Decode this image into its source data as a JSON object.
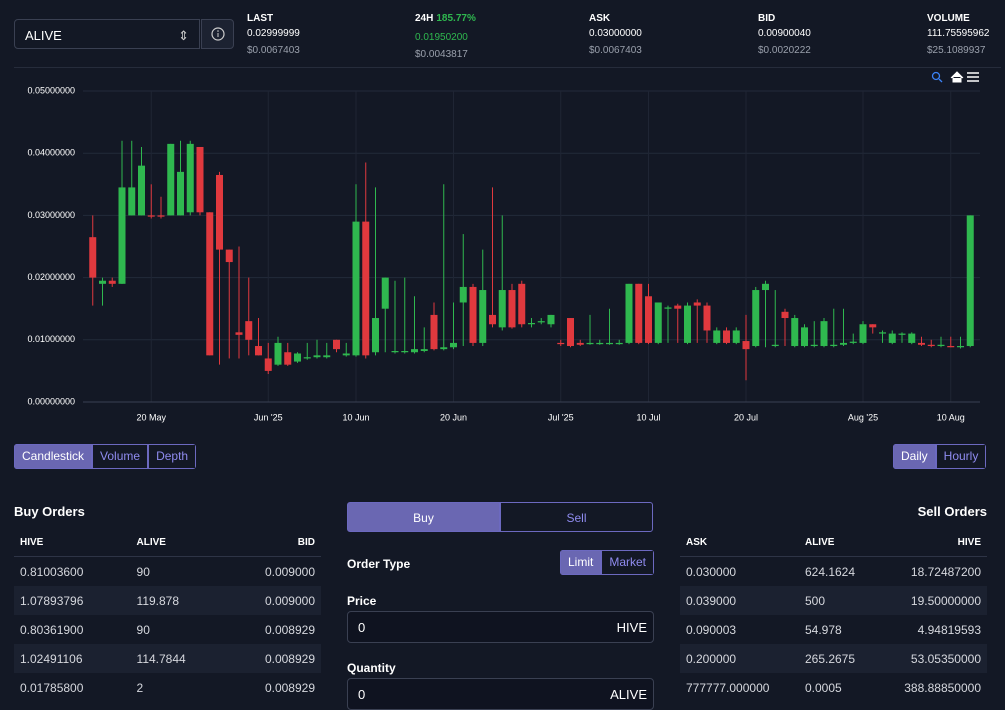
{
  "header": {
    "market": "ALIVE",
    "stats": [
      {
        "label": "LAST",
        "value": "0.02999999",
        "usd": "$0.0067403"
      },
      {
        "label": "24H",
        "change": "185.77%",
        "value": "0.01950200",
        "usd": "$0.0043817"
      },
      {
        "label": "ASK",
        "value": "0.03000000",
        "usd": "$0.0067403"
      },
      {
        "label": "BID",
        "value": "0.00900040",
        "usd": "$0.0020222"
      },
      {
        "label": "VOLUME",
        "value": "111.75595962",
        "usd": "$25.1089937"
      }
    ]
  },
  "chart_data": {
    "type": "candlestick",
    "up_color": "#2fb84f",
    "down_color": "#e0393e",
    "grid": true,
    "xlim": [
      "2025-05-13",
      "2025-08-13"
    ],
    "xticks": [
      {
        "value": "2025-05-20",
        "label": "20 May"
      },
      {
        "value": "2025-06-01",
        "label": "Jun '25"
      },
      {
        "value": "2025-06-10",
        "label": "10 Jun"
      },
      {
        "value": "2025-06-20",
        "label": "20 Jun"
      },
      {
        "value": "2025-07-01",
        "label": "Jul '25"
      },
      {
        "value": "2025-07-10",
        "label": "10 Jul"
      },
      {
        "value": "2025-07-20",
        "label": "20 Jul"
      },
      {
        "value": "2025-08-01",
        "label": "Aug '25"
      },
      {
        "value": "2025-08-10",
        "label": "10 Aug"
      }
    ],
    "ylim": [
      0,
      0.05
    ],
    "yticks": [
      {
        "value": 0,
        "label": "0.00000000"
      },
      {
        "value": 0.01,
        "label": "0.01000000"
      },
      {
        "value": 0.02,
        "label": "0.02000000"
      },
      {
        "value": 0.03,
        "label": "0.03000000"
      },
      {
        "value": 0.04,
        "label": "0.04000000"
      },
      {
        "value": 0.05,
        "label": "0.05000000"
      }
    ],
    "x": [
      "2025-05-14",
      "2025-05-15",
      "2025-05-16",
      "2025-05-17",
      "2025-05-18",
      "2025-05-19",
      "2025-05-20",
      "2025-05-21",
      "2025-05-22",
      "2025-05-23",
      "2025-05-24",
      "2025-05-25",
      "2025-05-26",
      "2025-05-27",
      "2025-05-28",
      "2025-05-29",
      "2025-05-30",
      "2025-05-31",
      "2025-06-01",
      "2025-06-02",
      "2025-06-03",
      "2025-06-04",
      "2025-06-05",
      "2025-06-06",
      "2025-06-07",
      "2025-06-08",
      "2025-06-09",
      "2025-06-10",
      "2025-06-11",
      "2025-06-12",
      "2025-06-13",
      "2025-06-14",
      "2025-06-15",
      "2025-06-16",
      "2025-06-17",
      "2025-06-18",
      "2025-06-19",
      "2025-06-20",
      "2025-06-21",
      "2025-06-22",
      "2025-06-23",
      "2025-06-24",
      "2025-06-25",
      "2025-06-26",
      "2025-06-27",
      "2025-06-28",
      "2025-06-29",
      "2025-06-30",
      "2025-07-01",
      "2025-07-02",
      "2025-07-03",
      "2025-07-04",
      "2025-07-05",
      "2025-07-06",
      "2025-07-07",
      "2025-07-08",
      "2025-07-09",
      "2025-07-10",
      "2025-07-11",
      "2025-07-12",
      "2025-07-13",
      "2025-07-14",
      "2025-07-15",
      "2025-07-16",
      "2025-07-17",
      "2025-07-18",
      "2025-07-19",
      "2025-07-20",
      "2025-07-21",
      "2025-07-22",
      "2025-07-23",
      "2025-07-24",
      "2025-07-25",
      "2025-07-26",
      "2025-07-27",
      "2025-07-28",
      "2025-07-29",
      "2025-07-30",
      "2025-07-31",
      "2025-08-01",
      "2025-08-02",
      "2025-08-03",
      "2025-08-04",
      "2025-08-05",
      "2025-08-06",
      "2025-08-07",
      "2025-08-08",
      "2025-08-09",
      "2025-08-10",
      "2025-08-11",
      "2025-08-12"
    ],
    "open": [
      0.0265,
      0.019,
      0.0195,
      0.019,
      0.03,
      0.03,
      0.03,
      0.03,
      0.03,
      0.03,
      0.0305,
      0.041,
      0.0305,
      0.0365,
      0.0245,
      0.0112,
      0.013,
      0.009,
      0.007,
      0.006,
      0.008,
      0.0065,
      0.007,
      0.0072,
      0.0072,
      0.01,
      0.0075,
      0.0075,
      0.029,
      0.008,
      0.015,
      0.008,
      0.008,
      0.008,
      0.0082,
      0.014,
      0.0085,
      0.0088,
      0.016,
      0.0185,
      0.0095,
      0.014,
      0.012,
      0.018,
      0.019,
      0.0125,
      0.0128,
      0.0125,
      0.0095,
      0.0135,
      0.0095,
      0.0093,
      0.0093,
      0.0093,
      0.0093,
      0.0095,
      0.019,
      0.017,
      0.0095,
      0.015,
      0.0155,
      0.0095,
      0.016,
      0.0155,
      0.0095,
      0.0115,
      0.0095,
      0.0098,
      0.009,
      0.018,
      0.009,
      0.0145,
      0.009,
      0.009,
      0.009,
      0.009,
      0.009,
      0.0092,
      0.0095,
      0.0095,
      0.0125,
      0.011,
      0.0095,
      0.0108,
      0.0095,
      0.0095,
      0.0092,
      0.009,
      0.009,
      0.0088,
      0.009
    ],
    "high": [
      0.03,
      0.02,
      0.02,
      0.042,
      0.042,
      0.041,
      0.035,
      0.033,
      0.0415,
      0.042,
      0.042,
      0.041,
      0.0305,
      0.037,
      0.0245,
      0.025,
      0.02,
      0.0135,
      0.0095,
      0.0105,
      0.0095,
      0.008,
      0.0095,
      0.01,
      0.0095,
      0.01,
      0.0095,
      0.035,
      0.0385,
      0.0345,
      0.02,
      0.0195,
      0.02,
      0.017,
      0.012,
      0.016,
      0.035,
      0.016,
      0.027,
      0.019,
      0.0245,
      0.0345,
      0.03,
      0.019,
      0.0195,
      0.0135,
      0.0135,
      0.014,
      0.01,
      0.0135,
      0.01,
      0.014,
      0.01,
      0.015,
      0.01,
      0.019,
      0.019,
      0.019,
      0.016,
      0.0155,
      0.0158,
      0.016,
      0.0165,
      0.016,
      0.012,
      0.012,
      0.012,
      0.014,
      0.0185,
      0.0195,
      0.018,
      0.015,
      0.014,
      0.0125,
      0.013,
      0.0135,
      0.015,
      0.015,
      0.011,
      0.013,
      0.0125,
      0.0115,
      0.0115,
      0.0112,
      0.0112,
      0.0105,
      0.01,
      0.0105,
      0.0105,
      0.0105,
      0.03
    ],
    "low": [
      0.0155,
      0.0155,
      0.0185,
      0.019,
      0.03,
      0.03,
      0.0295,
      0.0295,
      0.03,
      0.03,
      0.03,
      0.03,
      0.0075,
      0.006,
      0.007,
      0.007,
      0.0075,
      0.0075,
      0.0045,
      0.0058,
      0.0058,
      0.0063,
      0.0068,
      0.007,
      0.007,
      0.008,
      0.0073,
      0.0073,
      0.007,
      0.0075,
      0.008,
      0.0078,
      0.0078,
      0.0078,
      0.008,
      0.0083,
      0.0083,
      0.0085,
      0.009,
      0.009,
      0.009,
      0.012,
      0.0115,
      0.0118,
      0.012,
      0.012,
      0.0125,
      0.012,
      0.009,
      0.0088,
      0.009,
      0.0092,
      0.0092,
      0.0092,
      0.0092,
      0.0093,
      0.0093,
      0.0093,
      0.0093,
      0.0095,
      0.0095,
      0.0093,
      0.0095,
      0.0095,
      0.0093,
      0.0093,
      0.0093,
      0.0035,
      0.0088,
      0.0088,
      0.0088,
      0.009,
      0.0088,
      0.0088,
      0.0088,
      0.0088,
      0.0088,
      0.009,
      0.0093,
      0.0093,
      0.011,
      0.0095,
      0.0093,
      0.0095,
      0.0093,
      0.009,
      0.0088,
      0.0088,
      0.0088,
      0.0086,
      0.0088
    ],
    "close": [
      0.02,
      0.0195,
      0.019,
      0.0345,
      0.0345,
      0.038,
      0.0298,
      0.0298,
      0.0415,
      0.037,
      0.0415,
      0.0305,
      0.0075,
      0.0245,
      0.0225,
      0.0108,
      0.01,
      0.0075,
      0.005,
      0.0095,
      0.006,
      0.0078,
      0.0072,
      0.0075,
      0.0075,
      0.0085,
      0.0078,
      0.029,
      0.0075,
      0.0135,
      0.02,
      0.0082,
      0.0082,
      0.0085,
      0.0085,
      0.0085,
      0.0088,
      0.0095,
      0.0185,
      0.0095,
      0.018,
      0.0125,
      0.018,
      0.012,
      0.0125,
      0.0127,
      0.013,
      0.014,
      0.0093,
      0.009,
      0.0092,
      0.0095,
      0.0095,
      0.0095,
      0.0095,
      0.019,
      0.0095,
      0.0095,
      0.016,
      0.0152,
      0.015,
      0.0155,
      0.0155,
      0.0115,
      0.0115,
      0.0095,
      0.0115,
      0.0085,
      0.018,
      0.019,
      0.0092,
      0.0135,
      0.0135,
      0.012,
      0.0092,
      0.013,
      0.0092,
      0.0095,
      0.0097,
      0.0125,
      0.012,
      0.0112,
      0.011,
      0.011,
      0.011,
      0.0092,
      0.009,
      0.0092,
      0.0088,
      0.009,
      0.03
    ]
  },
  "chart_controls": {
    "views": [
      "Candlestick",
      "Volume",
      "Depth"
    ],
    "intervals": [
      "Daily",
      "Hourly"
    ]
  },
  "buy_orders": {
    "title": "Buy Orders",
    "columns": [
      "HIVE",
      "ALIVE",
      "BID"
    ],
    "rows": [
      [
        "0.81003600",
        "90",
        "0.009000"
      ],
      [
        "1.07893796",
        "119.878",
        "0.009000"
      ],
      [
        "0.80361900",
        "90",
        "0.008929"
      ],
      [
        "1.02491106",
        "114.7844",
        "0.008929"
      ],
      [
        "0.01785800",
        "2",
        "0.008929"
      ]
    ]
  },
  "order_form": {
    "tabs": [
      "Buy",
      "Sell"
    ],
    "order_type": "Order Type",
    "types": [
      "Limit",
      "Market"
    ],
    "price_label": "Price",
    "price_value": "0",
    "price_unit": "HIVE",
    "quantity_label": "Quantity",
    "quantity_value": "0",
    "quantity_unit": "ALIVE"
  },
  "sell_orders": {
    "title": "Sell Orders",
    "columns": [
      "ASK",
      "ALIVE",
      "HIVE"
    ],
    "rows": [
      [
        "0.030000",
        "624.1624",
        "18.72487200"
      ],
      [
        "0.039000",
        "500",
        "19.50000000"
      ],
      [
        "0.090003",
        "54.978",
        "4.94819593"
      ],
      [
        "0.200000",
        "265.2675",
        "53.05350000"
      ],
      [
        "777777.000000",
        "0.0005",
        "388.88850000"
      ]
    ]
  }
}
